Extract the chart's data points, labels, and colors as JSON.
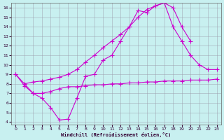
{
  "xlabel": "Windchill (Refroidissement éolien,°C)",
  "background_color": "#c8f0f0",
  "line_color": "#cc00cc",
  "grid_color": "#aaaaaa",
  "xlim": [
    0,
    23
  ],
  "ylim": [
    4,
    16
  ],
  "xticks": [
    0,
    1,
    2,
    3,
    4,
    5,
    6,
    7,
    8,
    9,
    10,
    11,
    12,
    13,
    14,
    15,
    16,
    17,
    18,
    19,
    20,
    21,
    22,
    23
  ],
  "yticks": [
    4,
    5,
    6,
    7,
    8,
    9,
    10,
    11,
    12,
    13,
    14,
    15,
    16
  ],
  "line1_x": [
    0,
    1,
    2,
    3,
    4,
    5,
    6,
    7,
    8,
    9,
    10,
    11,
    12,
    13,
    14,
    15,
    16,
    17,
    18,
    19,
    20
  ],
  "line1_y": [
    9.0,
    8.0,
    7.0,
    6.5,
    5.5,
    4.2,
    4.3,
    6.5,
    8.8,
    9.0,
    10.5,
    11.0,
    12.5,
    14.0,
    15.7,
    15.5,
    16.2,
    16.5,
    16.0,
    14.0,
    12.5
  ],
  "line2_x": [
    0,
    1,
    2,
    3,
    4,
    5,
    6,
    7,
    8,
    9,
    10,
    11,
    12,
    13,
    14,
    15,
    16,
    17,
    18,
    19,
    20,
    21,
    22,
    23
  ],
  "line2_y": [
    9.0,
    7.8,
    7.0,
    7.0,
    7.2,
    7.5,
    7.7,
    7.7,
    7.8,
    7.9,
    7.9,
    8.0,
    8.0,
    8.1,
    8.1,
    8.2,
    8.2,
    8.3,
    8.3,
    8.3,
    8.4,
    8.4,
    8.4,
    8.5
  ],
  "line3_x": [
    1,
    2,
    3,
    4,
    5,
    6,
    7,
    8,
    9,
    10,
    11,
    12,
    13,
    14,
    15,
    16,
    17,
    18,
    19,
    20,
    21,
    22,
    23
  ],
  "line3_y": [
    8.0,
    8.2,
    8.3,
    8.5,
    8.7,
    9.0,
    9.5,
    10.3,
    11.0,
    11.8,
    12.5,
    13.2,
    14.0,
    15.0,
    15.8,
    16.2,
    16.5,
    14.0,
    12.5,
    11.0,
    10.0,
    9.5,
    9.5
  ]
}
